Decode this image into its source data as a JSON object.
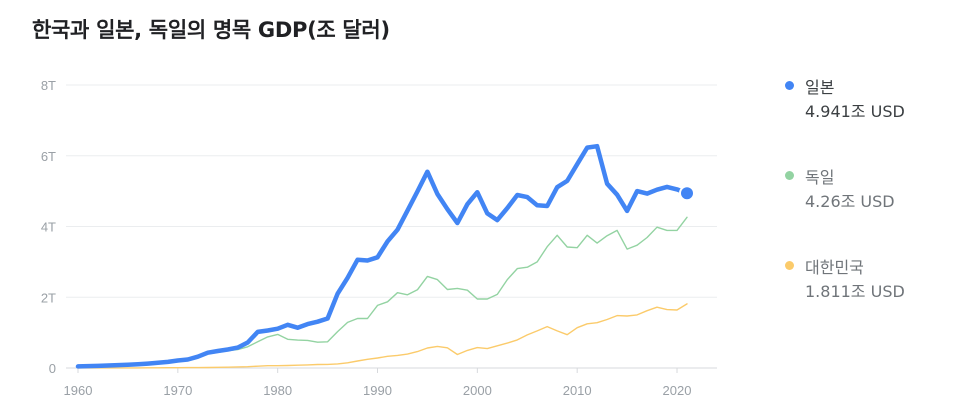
{
  "title": "한국과 일본, 독일의 명목 GDP(조 달러)",
  "chart_data": {
    "type": "line",
    "title": "한국과 일본, 독일의 명목 GDP(조 달러)",
    "xlabel": "",
    "ylabel": "",
    "xlim": [
      1960,
      2021
    ],
    "ylim": [
      0,
      8
    ],
    "x_ticks": [
      1960,
      1970,
      1980,
      1990,
      2000,
      2010,
      2020
    ],
    "x_tick_labels": [
      "1960",
      "1970",
      "1980",
      "1990",
      "2000",
      "2010",
      "2020"
    ],
    "y_ticks": [
      0,
      2,
      4,
      6,
      8
    ],
    "y_tick_labels": [
      "0",
      "2T",
      "4T",
      "6T",
      "8T"
    ],
    "grid": true,
    "legend_position": "right",
    "series": [
      {
        "name": "일본",
        "color": "#4285f4",
        "label": "4.941조 USD",
        "x": [
          1960,
          1961,
          1962,
          1963,
          1964,
          1965,
          1966,
          1967,
          1968,
          1969,
          1970,
          1971,
          1972,
          1973,
          1974,
          1975,
          1976,
          1977,
          1978,
          1979,
          1980,
          1981,
          1982,
          1983,
          1984,
          1985,
          1986,
          1987,
          1988,
          1989,
          1990,
          1991,
          1992,
          1993,
          1994,
          1995,
          1996,
          1997,
          1998,
          1999,
          2000,
          2001,
          2002,
          2003,
          2004,
          2005,
          2006,
          2007,
          2008,
          2009,
          2010,
          2011,
          2012,
          2013,
          2014,
          2015,
          2016,
          2017,
          2018,
          2019,
          2020,
          2021
        ],
        "values": [
          0.044,
          0.054,
          0.06,
          0.07,
          0.082,
          0.091,
          0.106,
          0.124,
          0.147,
          0.172,
          0.213,
          0.241,
          0.319,
          0.432,
          0.48,
          0.522,
          0.577,
          0.72,
          1.02,
          1.06,
          1.11,
          1.22,
          1.14,
          1.24,
          1.31,
          1.4,
          2.1,
          2.55,
          3.06,
          3.04,
          3.13,
          3.58,
          3.91,
          4.45,
          4.99,
          5.55,
          4.92,
          4.49,
          4.1,
          4.63,
          4.97,
          4.37,
          4.18,
          4.52,
          4.89,
          4.83,
          4.6,
          4.58,
          5.11,
          5.29,
          5.76,
          6.23,
          6.27,
          5.21,
          4.9,
          4.44,
          5.0,
          4.93,
          5.04,
          5.12,
          5.05,
          4.941
        ]
      },
      {
        "name": "독일",
        "color": "#93d3a2",
        "label": "4.26조 USD",
        "x": [
          1970,
          1971,
          1972,
          1973,
          1974,
          1975,
          1976,
          1977,
          1978,
          1979,
          1980,
          1981,
          1982,
          1983,
          1984,
          1985,
          1986,
          1987,
          1988,
          1989,
          1990,
          1991,
          1992,
          1993,
          1994,
          1995,
          1996,
          1997,
          1998,
          1999,
          2000,
          2001,
          2002,
          2003,
          2004,
          2005,
          2006,
          2007,
          2008,
          2009,
          2010,
          2011,
          2012,
          2013,
          2014,
          2015,
          2016,
          2017,
          2018,
          2019,
          2020,
          2021
        ],
        "values": [
          0.215,
          0.25,
          0.3,
          0.399,
          0.445,
          0.49,
          0.52,
          0.6,
          0.74,
          0.88,
          0.95,
          0.81,
          0.79,
          0.78,
          0.73,
          0.74,
          1.03,
          1.29,
          1.4,
          1.4,
          1.77,
          1.87,
          2.13,
          2.07,
          2.21,
          2.59,
          2.5,
          2.22,
          2.25,
          2.2,
          1.95,
          1.95,
          2.08,
          2.5,
          2.81,
          2.85,
          3.0,
          3.43,
          3.75,
          3.42,
          3.4,
          3.75,
          3.53,
          3.74,
          3.89,
          3.36,
          3.47,
          3.69,
          3.98,
          3.89,
          3.89,
          4.26
        ]
      },
      {
        "name": "대한민국",
        "color": "#fbcb6b",
        "label": "1.811조 USD",
        "x": [
          1960,
          1961,
          1962,
          1963,
          1964,
          1965,
          1966,
          1967,
          1968,
          1969,
          1970,
          1971,
          1972,
          1973,
          1974,
          1975,
          1976,
          1977,
          1978,
          1979,
          1980,
          1981,
          1982,
          1983,
          1984,
          1985,
          1986,
          1987,
          1988,
          1989,
          1990,
          1991,
          1992,
          1993,
          1994,
          1995,
          1996,
          1997,
          1998,
          1999,
          2000,
          2001,
          2002,
          2003,
          2004,
          2005,
          2006,
          2007,
          2008,
          2009,
          2010,
          2011,
          2012,
          2013,
          2014,
          2015,
          2016,
          2017,
          2018,
          2019,
          2020,
          2021
        ],
        "values": [
          0.004,
          0.002,
          0.003,
          0.004,
          0.003,
          0.003,
          0.004,
          0.005,
          0.006,
          0.008,
          0.009,
          0.01,
          0.011,
          0.014,
          0.019,
          0.022,
          0.03,
          0.038,
          0.052,
          0.066,
          0.065,
          0.072,
          0.078,
          0.088,
          0.098,
          0.101,
          0.115,
          0.147,
          0.197,
          0.246,
          0.284,
          0.33,
          0.356,
          0.392,
          0.463,
          0.566,
          0.61,
          0.57,
          0.383,
          0.497,
          0.576,
          0.548,
          0.627,
          0.703,
          0.793,
          0.935,
          1.05,
          1.17,
          1.05,
          0.94,
          1.14,
          1.25,
          1.28,
          1.37,
          1.48,
          1.47,
          1.5,
          1.62,
          1.72,
          1.65,
          1.64,
          1.811
        ]
      }
    ]
  }
}
